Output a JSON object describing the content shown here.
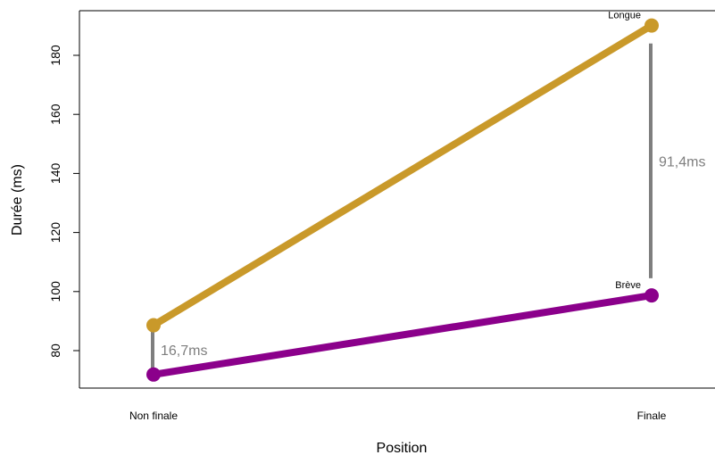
{
  "chart_data": {
    "type": "line",
    "xlabel": "Position",
    "ylabel": "Durée (ms)",
    "categories": [
      "Non finale",
      "Finale"
    ],
    "ylim": [
      68,
      195
    ],
    "yticks": [
      80,
      100,
      120,
      140,
      160,
      180
    ],
    "grid": false,
    "series": [
      {
        "name": "Longue",
        "values": [
          88.6,
          190.1
        ],
        "color": "#C9992A"
      },
      {
        "name": "Brève",
        "values": [
          71.9,
          98.7
        ],
        "color": "#8B008B"
      }
    ],
    "annotations": [
      {
        "text": "16,7ms",
        "category": "Non finale",
        "from": 87,
        "to": 73.5,
        "color": "#7f7f7f"
      },
      {
        "text": "91,4ms",
        "category": "Finale",
        "from": 184,
        "to": 104.5,
        "color": "#7f7f7f"
      }
    ]
  }
}
